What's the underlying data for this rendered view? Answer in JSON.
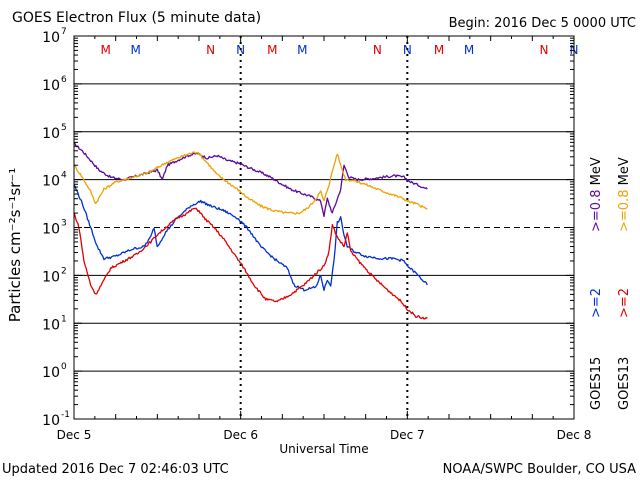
{
  "header": {
    "title": "GOES Electron Flux (5 minute data)",
    "begin": "Begin: 2016 Dec 5 0000 UTC"
  },
  "footer": {
    "updated": "Updated 2016 Dec  7 02:46:03 UTC",
    "credit": "NOAA/SWPC Boulder, CO USA"
  },
  "colors": {
    "goes15_08": "#5a0a9e",
    "goes13_08": "#f0a000",
    "goes15_2": "#0030d0",
    "goes13_2": "#e00000",
    "marker_m": "#e00000",
    "marker_n_red": "#e00000",
    "marker_blue": "#0030d0"
  },
  "markers": [
    {
      "label": "M",
      "day": 0.19,
      "color": "marker_m"
    },
    {
      "label": "M",
      "day": 0.37,
      "color": "marker_blue"
    },
    {
      "label": "N",
      "day": 0.82,
      "color": "marker_n_red"
    },
    {
      "label": "N",
      "day": 1.0,
      "color": "marker_blue"
    },
    {
      "label": "M",
      "day": 1.19,
      "color": "marker_m"
    },
    {
      "label": "M",
      "day": 1.37,
      "color": "marker_blue"
    },
    {
      "label": "N",
      "day": 1.82,
      "color": "marker_n_red"
    },
    {
      "label": "N",
      "day": 2.0,
      "color": "marker_blue"
    },
    {
      "label": "M",
      "day": 2.19,
      "color": "marker_m"
    },
    {
      "label": "M",
      "day": 2.37,
      "color": "marker_blue"
    },
    {
      "label": "N",
      "day": 2.82,
      "color": "marker_n_red"
    },
    {
      "label": "N",
      "day": 3.0,
      "color": "marker_blue"
    }
  ],
  "chart_data": {
    "type": "line",
    "title": "GOES Electron Flux (5 minute data)",
    "xlabel": "Universal Time",
    "ylabel": "Particles cm⁻²s⁻¹sr⁻¹",
    "y_scale": "log",
    "ylim_exp": [
      -1,
      7
    ],
    "xlim_days": [
      0,
      3
    ],
    "x_tick_labels": [
      "Dec 5",
      "Dec 6",
      "Dec 7",
      "Dec 8"
    ],
    "y_tick_labels": [
      {
        "base": "10",
        "exp": "-1"
      },
      {
        "base": "10",
        "exp": "0"
      },
      {
        "base": "10",
        "exp": "1"
      },
      {
        "base": "10",
        "exp": "2"
      },
      {
        "base": "10",
        "exp": "3"
      },
      {
        "base": "10",
        "exp": "4"
      },
      {
        "base": "10",
        "exp": "5"
      },
      {
        "base": "10",
        "exp": "6"
      },
      {
        "base": "10",
        "exp": "7"
      }
    ],
    "solid_grid_exp": [
      0,
      1,
      2,
      4,
      5,
      6
    ],
    "dashed_grid_exp": [
      3
    ],
    "legend": {
      "rows": [
        {
          "sat": "GOES15",
          "items": [
            {
              "text": ">=2",
              "color": "goes15_2"
            },
            {
              "text": ">=0.8 MeV",
              "color": "goes15_08"
            }
          ]
        },
        {
          "sat": "GOES13",
          "items": [
            {
              "text": ">=2",
              "color": "goes13_2"
            },
            {
              "text": ">=0.8 MeV",
              "color": "goes13_08"
            }
          ]
        }
      ]
    },
    "series": [
      {
        "name": "GOES15 >=0.8 MeV",
        "color": "goes15_08",
        "points": [
          [
            0,
            4.75
          ],
          [
            0.05,
            4.6
          ],
          [
            0.1,
            4.4
          ],
          [
            0.15,
            4.2
          ],
          [
            0.22,
            4.05
          ],
          [
            0.3,
            4.0
          ],
          [
            0.4,
            4.1
          ],
          [
            0.5,
            4.2
          ],
          [
            0.53,
            4.0
          ],
          [
            0.56,
            4.3
          ],
          [
            0.62,
            4.4
          ],
          [
            0.68,
            4.5
          ],
          [
            0.74,
            4.55
          ],
          [
            0.8,
            4.45
          ],
          [
            0.86,
            4.5
          ],
          [
            0.92,
            4.4
          ],
          [
            0.98,
            4.35
          ],
          [
            1.05,
            4.25
          ],
          [
            1.12,
            4.15
          ],
          [
            1.18,
            4.05
          ],
          [
            1.24,
            3.92
          ],
          [
            1.3,
            3.8
          ],
          [
            1.36,
            3.72
          ],
          [
            1.42,
            3.65
          ],
          [
            1.48,
            3.55
          ],
          [
            1.5,
            3.25
          ],
          [
            1.52,
            3.6
          ],
          [
            1.55,
            3.3
          ],
          [
            1.57,
            3.5
          ],
          [
            1.6,
            3.8
          ],
          [
            1.62,
            4.3
          ],
          [
            1.65,
            4.05
          ],
          [
            1.7,
            4.0
          ],
          [
            1.78,
            4.02
          ],
          [
            1.85,
            4.05
          ],
          [
            1.92,
            4.08
          ],
          [
            1.98,
            4.05
          ],
          [
            2.0,
            4.0
          ],
          [
            2.02,
            3.95
          ],
          [
            2.07,
            3.88
          ],
          [
            2.12,
            3.8
          ]
        ]
      },
      {
        "name": "GOES13 >=0.8 MeV",
        "color": "goes13_08",
        "points": [
          [
            0,
            4.3
          ],
          [
            0.05,
            4.05
          ],
          [
            0.1,
            3.75
          ],
          [
            0.13,
            3.5
          ],
          [
            0.18,
            3.8
          ],
          [
            0.25,
            3.95
          ],
          [
            0.35,
            4.05
          ],
          [
            0.45,
            4.15
          ],
          [
            0.5,
            4.25
          ],
          [
            0.55,
            4.35
          ],
          [
            0.62,
            4.45
          ],
          [
            0.7,
            4.55
          ],
          [
            0.74,
            4.58
          ],
          [
            0.8,
            4.35
          ],
          [
            0.86,
            4.1
          ],
          [
            0.92,
            3.95
          ],
          [
            0.98,
            3.8
          ],
          [
            1.05,
            3.6
          ],
          [
            1.12,
            3.45
          ],
          [
            1.2,
            3.35
          ],
          [
            1.28,
            3.3
          ],
          [
            1.35,
            3.3
          ],
          [
            1.4,
            3.4
          ],
          [
            1.44,
            3.55
          ],
          [
            1.48,
            3.75
          ],
          [
            1.5,
            3.55
          ],
          [
            1.53,
            3.9
          ],
          [
            1.56,
            4.3
          ],
          [
            1.58,
            4.55
          ],
          [
            1.6,
            4.3
          ],
          [
            1.63,
            4.0
          ],
          [
            1.68,
            3.98
          ],
          [
            1.75,
            3.9
          ],
          [
            1.82,
            3.8
          ],
          [
            1.9,
            3.7
          ],
          [
            1.98,
            3.6
          ],
          [
            2.0,
            3.55
          ],
          [
            2.05,
            3.5
          ],
          [
            2.12,
            3.38
          ]
        ]
      },
      {
        "name": "GOES15 >=2 MeV",
        "color": "goes15_2",
        "points": [
          [
            0,
            3.9
          ],
          [
            0.05,
            3.5
          ],
          [
            0.1,
            3.0
          ],
          [
            0.14,
            2.6
          ],
          [
            0.18,
            2.35
          ],
          [
            0.25,
            2.4
          ],
          [
            0.35,
            2.55
          ],
          [
            0.42,
            2.6
          ],
          [
            0.46,
            2.8
          ],
          [
            0.48,
            3.0
          ],
          [
            0.5,
            2.6
          ],
          [
            0.55,
            2.9
          ],
          [
            0.62,
            3.2
          ],
          [
            0.7,
            3.45
          ],
          [
            0.76,
            3.55
          ],
          [
            0.82,
            3.45
          ],
          [
            0.9,
            3.35
          ],
          [
            0.98,
            3.2
          ],
          [
            1.05,
            2.95
          ],
          [
            1.12,
            2.6
          ],
          [
            1.2,
            2.35
          ],
          [
            1.28,
            2.15
          ],
          [
            1.32,
            1.8
          ],
          [
            1.38,
            1.7
          ],
          [
            1.45,
            1.75
          ],
          [
            1.48,
            2.0
          ],
          [
            1.5,
            1.7
          ],
          [
            1.52,
            1.9
          ],
          [
            1.54,
            1.8
          ],
          [
            1.56,
            2.3
          ],
          [
            1.58,
            3.1
          ],
          [
            1.6,
            3.2
          ],
          [
            1.62,
            2.85
          ],
          [
            1.64,
            2.6
          ],
          [
            1.68,
            2.5
          ],
          [
            1.75,
            2.4
          ],
          [
            1.85,
            2.35
          ],
          [
            1.92,
            2.35
          ],
          [
            1.98,
            2.3
          ],
          [
            2.0,
            2.2
          ],
          [
            2.05,
            2.05
          ],
          [
            2.12,
            1.8
          ]
        ]
      },
      {
        "name": "GOES13 >=2 MeV",
        "color": "goes13_2",
        "points": [
          [
            0,
            3.3
          ],
          [
            0.03,
            3.0
          ],
          [
            0.06,
            2.3
          ],
          [
            0.1,
            1.8
          ],
          [
            0.13,
            1.6
          ],
          [
            0.18,
            1.9
          ],
          [
            0.22,
            2.15
          ],
          [
            0.3,
            2.3
          ],
          [
            0.38,
            2.45
          ],
          [
            0.46,
            2.7
          ],
          [
            0.5,
            2.85
          ],
          [
            0.55,
            3.0
          ],
          [
            0.62,
            3.2
          ],
          [
            0.68,
            3.3
          ],
          [
            0.72,
            3.4
          ],
          [
            0.75,
            3.35
          ],
          [
            0.78,
            3.2
          ],
          [
            0.84,
            3.0
          ],
          [
            0.9,
            2.75
          ],
          [
            0.96,
            2.45
          ],
          [
            1.02,
            2.15
          ],
          [
            1.08,
            1.8
          ],
          [
            1.15,
            1.5
          ],
          [
            1.22,
            1.45
          ],
          [
            1.3,
            1.6
          ],
          [
            1.38,
            1.8
          ],
          [
            1.44,
            2.0
          ],
          [
            1.5,
            2.2
          ],
          [
            1.53,
            2.5
          ],
          [
            1.55,
            3.05
          ],
          [
            1.58,
            2.8
          ],
          [
            1.62,
            2.6
          ],
          [
            1.64,
            2.9
          ],
          [
            1.66,
            2.5
          ],
          [
            1.72,
            2.25
          ],
          [
            1.8,
            1.95
          ],
          [
            1.88,
            1.7
          ],
          [
            1.95,
            1.5
          ],
          [
            2.0,
            1.3
          ],
          [
            2.05,
            1.15
          ],
          [
            2.1,
            1.1
          ],
          [
            2.12,
            1.1
          ]
        ]
      }
    ]
  }
}
